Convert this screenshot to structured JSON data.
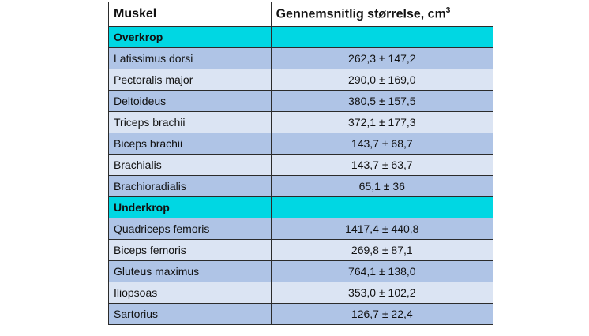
{
  "table": {
    "header": {
      "col1": "Muskel",
      "col2": "Gennemsnitlig størrelse, cm",
      "col2_sup": "3"
    },
    "sections": [
      {
        "title": "Overkrop",
        "rows": [
          {
            "muscle": "Latissimus dorsi",
            "value": "262,3 ± 147,2"
          },
          {
            "muscle": "Pectoralis major",
            "value": "290,0 ± 169,0"
          },
          {
            "muscle": "Deltoideus",
            "value": "380,5 ± 157,5"
          },
          {
            "muscle": "Triceps brachii",
            "value": "372,1 ± 177,3"
          },
          {
            "muscle": "Biceps brachii",
            "value": "143,7 ± 68,7"
          },
          {
            "muscle": "Brachialis",
            "value": "143,7 ± 63,7"
          },
          {
            "muscle": "Brachioradialis",
            "value": "65,1 ± 36"
          }
        ]
      },
      {
        "title": "Underkrop",
        "rows": [
          {
            "muscle": "Quadriceps femoris",
            "value": "1417,4 ± 440,8"
          },
          {
            "muscle": "Biceps femoris",
            "value": "269,8 ± 87,1"
          },
          {
            "muscle": "Gluteus maximus",
            "value": "764,1 ± 138,0"
          },
          {
            "muscle": "Iliopsoas",
            "value": "353,0 ± 102,2"
          },
          {
            "muscle": "Sartorius",
            "value": "126,7 ± 22,4"
          }
        ]
      }
    ],
    "colors": {
      "section": "#00d7e3",
      "row_dark": "#afc4e6",
      "row_light": "#dbe4f3"
    }
  }
}
